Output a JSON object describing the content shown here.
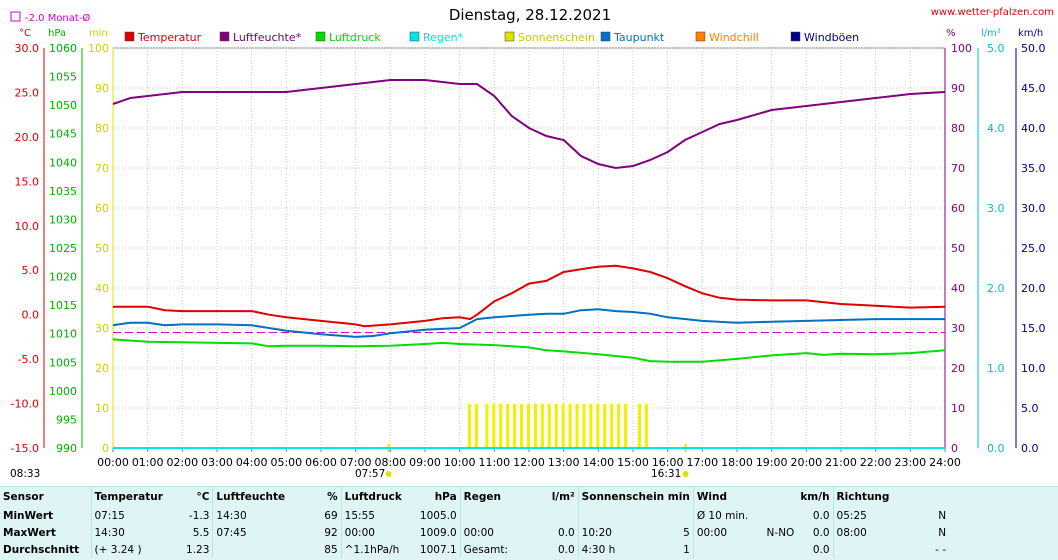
{
  "chart_data": {
    "type": "line",
    "title": "Dienstag, 28.12.2021",
    "source_link": "www.wetter-pfalzen.com",
    "monthly_avg_legend": "-2.0 Monat-Ø",
    "axis_units": {
      "temp": "°C",
      "pressure": "hPa",
      "sun": "min",
      "humidity": "%",
      "rain": "l/m²",
      "wind": "km/h"
    },
    "temp_ticks": [
      "30.0",
      "25.0",
      "20.0",
      "15.0",
      "10.0",
      "5.0",
      "0.0",
      "-5.0",
      "-10.0",
      "-15.0"
    ],
    "pressure_ticks": [
      "1060",
      "1055",
      "1050",
      "1045",
      "1040",
      "1035",
      "1030",
      "1025",
      "1020",
      "1015",
      "1010",
      "1005",
      "1000",
      "995",
      "990"
    ],
    "sun_ticks": [
      "100",
      "90",
      "80",
      "70",
      "60",
      "50",
      "40",
      "30",
      "20",
      "10",
      "0"
    ],
    "humidity_ticks": [
      "100",
      "90",
      "80",
      "70",
      "60",
      "50",
      "40",
      "30",
      "20",
      "10",
      "0"
    ],
    "rain_ticks": [
      "5.0",
      "4.0",
      "3.0",
      "2.0",
      "1.0",
      "0.0"
    ],
    "wind_ticks": [
      "50.0",
      "45.0",
      "40.0",
      "35.0",
      "30.0",
      "25.0",
      "20.0",
      "15.0",
      "10.0",
      "5.0",
      "0.0"
    ],
    "x_ticks": [
      "00:00",
      "01:00",
      "02:00",
      "03:00",
      "04:00",
      "05:00",
      "06:00",
      "07:00",
      "08:00",
      "09:00",
      "10:00",
      "11:00",
      "12:00",
      "13:00",
      "14:00",
      "15:00",
      "16:00",
      "17:00",
      "18:00",
      "19:00",
      "20:00",
      "21:00",
      "22:00",
      "23:00",
      "24:00"
    ],
    "ranges": {
      "temp": [
        -15,
        30
      ],
      "pressure": [
        990,
        1060
      ],
      "sun": [
        0,
        100
      ],
      "humidity": [
        0,
        100
      ],
      "rain": [
        0,
        5
      ],
      "wind": [
        0,
        50
      ],
      "hours": [
        0,
        24
      ]
    },
    "sun_events": {
      "sunrise": "07:57",
      "sunset": "16:31",
      "moonrise": "08:33"
    },
    "series": [
      {
        "name": "Temperatur",
        "color": "#dd0000",
        "axis": "temp",
        "points": [
          [
            0,
            0.9
          ],
          [
            1,
            0.9
          ],
          [
            1.5,
            0.5
          ],
          [
            2,
            0.4
          ],
          [
            3,
            0.4
          ],
          [
            4,
            0.4
          ],
          [
            4.5,
            0.0
          ],
          [
            5,
            -0.3
          ],
          [
            6,
            -0.7
          ],
          [
            7,
            -1.1
          ],
          [
            7.25,
            -1.3
          ],
          [
            8,
            -1.1
          ],
          [
            9,
            -0.7
          ],
          [
            9.5,
            -0.4
          ],
          [
            10,
            -0.3
          ],
          [
            10.3,
            -0.5
          ],
          [
            10.5,
            0.0
          ],
          [
            11,
            1.5
          ],
          [
            11.5,
            2.4
          ],
          [
            12,
            3.5
          ],
          [
            12.5,
            3.8
          ],
          [
            13,
            4.8
          ],
          [
            13.5,
            5.1
          ],
          [
            13.8,
            5.3
          ],
          [
            14,
            5.4
          ],
          [
            14.5,
            5.5
          ],
          [
            15,
            5.2
          ],
          [
            15.5,
            4.8
          ],
          [
            16,
            4.1
          ],
          [
            16.5,
            3.2
          ],
          [
            17,
            2.4
          ],
          [
            17.5,
            1.9
          ],
          [
            18,
            1.7
          ],
          [
            19,
            1.6
          ],
          [
            20,
            1.6
          ],
          [
            21,
            1.2
          ],
          [
            22,
            1.0
          ],
          [
            23,
            0.8
          ],
          [
            24,
            0.9
          ]
        ]
      },
      {
        "name": "Luftfeuchte*",
        "color": "#800080",
        "axis": "humidity",
        "points": [
          [
            0,
            86
          ],
          [
            0.5,
            87.5
          ],
          [
            1,
            88
          ],
          [
            2,
            89
          ],
          [
            3,
            89
          ],
          [
            4,
            89
          ],
          [
            5,
            89
          ],
          [
            6,
            90
          ],
          [
            7,
            91
          ],
          [
            8,
            92
          ],
          [
            9,
            92
          ],
          [
            10,
            91
          ],
          [
            10.5,
            91
          ],
          [
            11,
            88
          ],
          [
            11.5,
            83
          ],
          [
            12,
            80
          ],
          [
            12.5,
            78
          ],
          [
            13,
            77
          ],
          [
            13.5,
            73
          ],
          [
            14,
            71
          ],
          [
            14.5,
            70
          ],
          [
            15,
            70.5
          ],
          [
            15.5,
            72
          ],
          [
            16,
            74
          ],
          [
            16.5,
            77
          ],
          [
            17,
            79
          ],
          [
            17.5,
            81
          ],
          [
            18,
            82
          ],
          [
            19,
            84.5
          ],
          [
            20,
            85.5
          ],
          [
            21,
            86.5
          ],
          [
            22,
            87.5
          ],
          [
            23,
            88.5
          ],
          [
            24,
            89
          ]
        ]
      },
      {
        "name": "Luftdruck",
        "color": "#00dd00",
        "axis": "pressure",
        "points": [
          [
            0,
            1009.0
          ],
          [
            1,
            1008.6
          ],
          [
            2,
            1008.5
          ],
          [
            3,
            1008.4
          ],
          [
            4,
            1008.3
          ],
          [
            4.5,
            1007.8
          ],
          [
            5,
            1007.9
          ],
          [
            6,
            1007.9
          ],
          [
            7,
            1007.8
          ],
          [
            8,
            1007.9
          ],
          [
            9,
            1008.2
          ],
          [
            9.5,
            1008.4
          ],
          [
            10,
            1008.2
          ],
          [
            11,
            1008.0
          ],
          [
            12,
            1007.6
          ],
          [
            12.5,
            1007.1
          ],
          [
            13,
            1006.9
          ],
          [
            14,
            1006.4
          ],
          [
            14.5,
            1006.1
          ],
          [
            15,
            1005.8
          ],
          [
            15.5,
            1005.2
          ],
          [
            16,
            1005.1
          ],
          [
            17,
            1005.1
          ],
          [
            18,
            1005.6
          ],
          [
            19,
            1006.2
          ],
          [
            20,
            1006.6
          ],
          [
            20.5,
            1006.3
          ],
          [
            21,
            1006.5
          ],
          [
            22,
            1006.4
          ],
          [
            23,
            1006.6
          ],
          [
            24,
            1007.1
          ]
        ]
      },
      {
        "name": "Regen*",
        "color": "#00e5e5",
        "axis": "rain",
        "points": [
          [
            0,
            0
          ],
          [
            24,
            0
          ]
        ]
      },
      {
        "name": "Sonnenschein",
        "color": "#e0e000",
        "axis": "sun",
        "points": []
      },
      {
        "name": "Taupunkt",
        "color": "#0070c0",
        "axis": "temp",
        "points": [
          [
            0,
            -1.2
          ],
          [
            0.5,
            -0.9
          ],
          [
            1,
            -0.9
          ],
          [
            1.5,
            -1.2
          ],
          [
            2,
            -1.1
          ],
          [
            3,
            -1.1
          ],
          [
            4,
            -1.2
          ],
          [
            5,
            -1.8
          ],
          [
            6,
            -2.2
          ],
          [
            7,
            -2.5
          ],
          [
            7.5,
            -2.4
          ],
          [
            8,
            -2.1
          ],
          [
            9,
            -1.7
          ],
          [
            10,
            -1.5
          ],
          [
            10.5,
            -0.5
          ],
          [
            11,
            -0.3
          ],
          [
            12,
            0.0
          ],
          [
            12.5,
            0.1
          ],
          [
            13,
            0.1
          ],
          [
            13.5,
            0.5
          ],
          [
            14,
            0.6
          ],
          [
            14.5,
            0.4
          ],
          [
            15,
            0.3
          ],
          [
            15.5,
            0.1
          ],
          [
            16,
            -0.3
          ],
          [
            17,
            -0.7
          ],
          [
            18,
            -0.9
          ],
          [
            19,
            -0.8
          ],
          [
            20,
            -0.7
          ],
          [
            21,
            -0.6
          ],
          [
            22,
            -0.5
          ],
          [
            23,
            -0.5
          ],
          [
            24,
            -0.5
          ]
        ]
      },
      {
        "name": "Windchill",
        "color": "#ff7f00",
        "axis": "temp",
        "points": []
      },
      {
        "name": "Windböen",
        "color": "#000080",
        "axis": "wind",
        "points": []
      }
    ],
    "monthly_avg_temp": -2.0,
    "sunshine_minutes": [
      [
        10.3,
        11
      ],
      [
        10.5,
        11
      ],
      [
        10.8,
        11
      ],
      [
        11.0,
        11
      ],
      [
        11.2,
        11
      ],
      [
        11.4,
        11
      ],
      [
        11.6,
        11
      ],
      [
        11.8,
        11
      ],
      [
        12.0,
        11
      ],
      [
        12.2,
        11
      ],
      [
        12.4,
        11
      ],
      [
        12.6,
        11
      ],
      [
        12.8,
        11
      ],
      [
        13.0,
        11
      ],
      [
        13.2,
        11
      ],
      [
        13.4,
        11
      ],
      [
        13.6,
        11
      ],
      [
        13.8,
        11
      ],
      [
        14.0,
        11
      ],
      [
        14.2,
        11
      ],
      [
        14.4,
        11
      ],
      [
        14.6,
        11
      ],
      [
        14.8,
        11
      ],
      [
        15.2,
        11
      ],
      [
        15.4,
        11
      ]
    ]
  },
  "stats": {
    "headers": {
      "sensor": "Sensor",
      "temperature": "Temperatur",
      "temperature_unit": "°C",
      "humidity": "Luftfeuchte",
      "humidity_unit": "%",
      "pressure": "Luftdruck",
      "pressure_unit": "hPa",
      "rain": "Regen",
      "rain_unit": "l/m²",
      "sunshine": "Sonnenschein min",
      "wind": "Wind",
      "wind_unit": "km/h",
      "direction": "Richtung"
    },
    "min": {
      "label": "MinWert",
      "temp_time": "07:15",
      "temp_val": "-1.3",
      "hum_time": "14:30",
      "hum_val": "69",
      "pres_time": "15:55",
      "pres_val": "1005.0",
      "rain_time": "",
      "rain_val": "",
      "sun_time": "",
      "sun_val": "",
      "wind_time": "Ø 10 min.",
      "wind_dir": "",
      "wind_val": "0.0",
      "dir_time": "05:25",
      "dir_val": "N"
    },
    "max": {
      "label": "MaxWert",
      "temp_time": "14:30",
      "temp_val": "5.5",
      "hum_time": "07:45",
      "hum_val": "92",
      "pres_time": "00:00",
      "pres_val": "1009.0",
      "rain_time": "00:00",
      "rain_val": "0.0",
      "sun_time": "10:20",
      "sun_val": "5",
      "wind_time": "00:00",
      "wind_dir": "N-NO",
      "wind_val": "0.0",
      "dir_time": "08:00",
      "dir_val": "N"
    },
    "avg": {
      "label": "Durchschnitt",
      "temp_time": "(+ 3.24 )",
      "temp_val": "1.23",
      "hum_time": "",
      "hum_val": "85",
      "pres_time": "^1.1hPa/h",
      "pres_val": "1007.1",
      "rain_time": "Gesamt:",
      "rain_val": "0.0",
      "sun_time": "4:30 h",
      "sun_val": "1",
      "wind_time": "",
      "wind_dir": "",
      "wind_val": "0.0",
      "dir_time": "",
      "dir_val": "- -"
    }
  }
}
